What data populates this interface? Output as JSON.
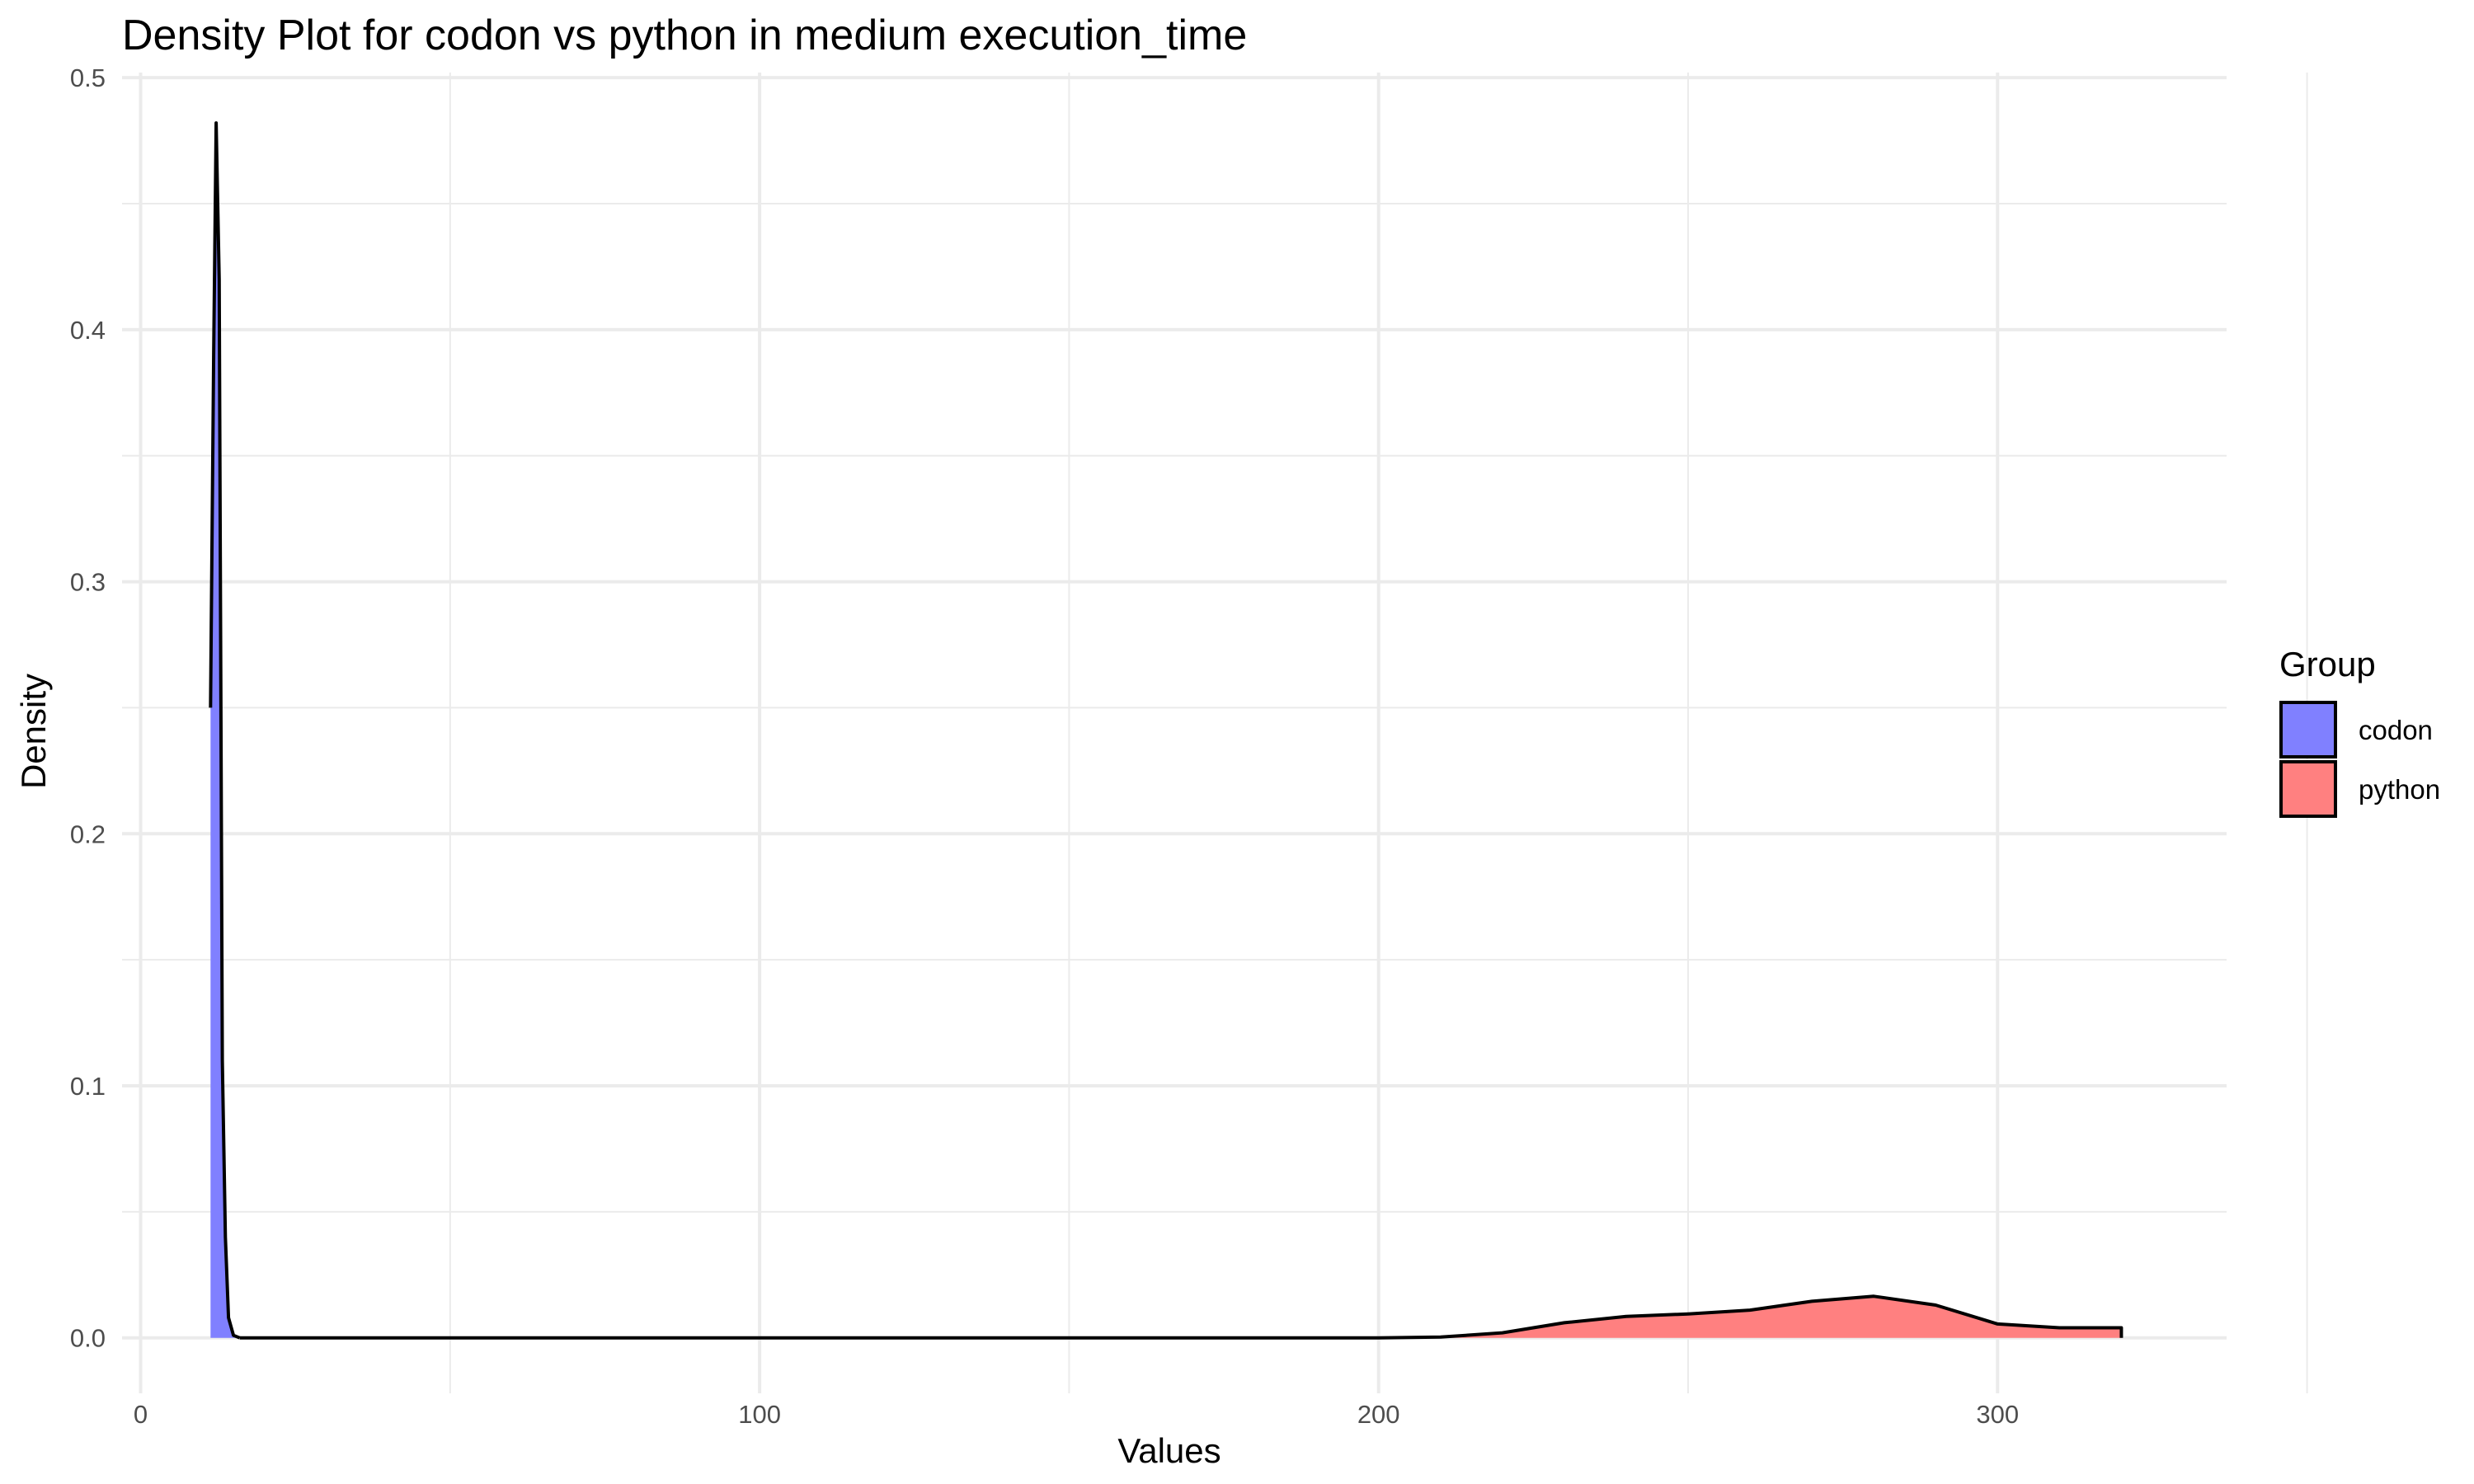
{
  "chart_data": {
    "type": "area",
    "title": "Density Plot for codon vs python in medium execution_time",
    "xlabel": "Values",
    "ylabel": "Density",
    "xlim": [
      -3,
      337
    ],
    "ylim": [
      -0.022,
      0.502
    ],
    "x_ticks": [
      0,
      100,
      200,
      300
    ],
    "x_tick_labels": [
      "0",
      "100",
      "200",
      "300"
    ],
    "y_ticks": [
      0.0,
      0.1,
      0.2,
      0.3,
      0.4,
      0.5
    ],
    "y_tick_labels": [
      "0.0",
      "0.1",
      "0.2",
      "0.3",
      "0.4",
      "0.5"
    ],
    "grid": true,
    "legend": {
      "title": "Group",
      "position": "right",
      "entries": [
        "codon",
        "python"
      ]
    },
    "series": [
      {
        "name": "codon",
        "color": "#8080ff",
        "x": [
          11.3,
          11.8,
          12.2,
          12.7,
          13.2,
          13.7,
          14.2,
          15.0,
          16.0
        ],
        "y": [
          0.25,
          0.39,
          0.482,
          0.42,
          0.11,
          0.04,
          0.008,
          0.001,
          0.0
        ]
      },
      {
        "name": "python",
        "color": "#ff8080",
        "x": [
          16,
          100,
          190,
          200,
          210,
          220,
          230,
          240,
          250,
          260,
          270,
          280,
          290,
          300,
          310,
          320
        ],
        "y": [
          0.0,
          0.0,
          0.0,
          0.0,
          0.0003,
          0.002,
          0.006,
          0.0085,
          0.0095,
          0.011,
          0.0145,
          0.0165,
          0.013,
          0.0055,
          0.004,
          0.004
        ]
      }
    ]
  }
}
